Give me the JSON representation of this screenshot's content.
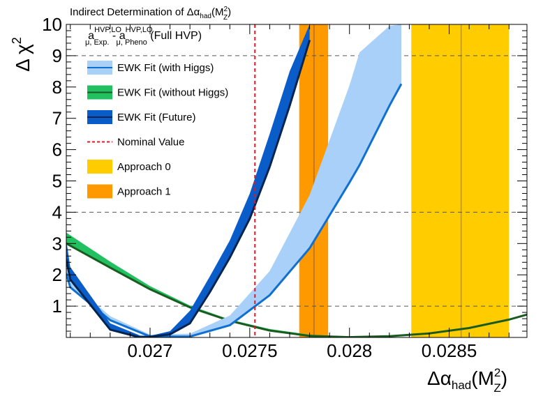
{
  "chart_data": {
    "type": "line",
    "title_prefix": "Indirect Determination of ",
    "title_symbol": "Δα",
    "title_sub": "had",
    "title_arg": "(M",
    "title_arg_sup": "2",
    "title_arg_sub": "Z",
    "title_arg_close": ")",
    "subtitle": {
      "a1": "a",
      "a1_sup": "HVP,LO",
      "a1_sub": "μ, Exp.",
      "minus": " - ",
      "a2": "a",
      "a2_sup": "HVP,LO",
      "a2_sub": "μ, Pheno",
      "suffix": " (Full HVP)"
    },
    "ylabel": "Δ χ",
    "ylabel_sup": "2",
    "xlabel": {
      "symbol": "Δα",
      "sub": "had",
      "arg": "(M",
      "arg_sup": "2",
      "arg_sub": "Z",
      "close": ")"
    },
    "xlim": [
      0.02658,
      0.02889
    ],
    "ylim": [
      0,
      10
    ],
    "xticks": [
      0.027,
      0.0275,
      0.028,
      0.0285
    ],
    "xtick_labels": [
      "0.027",
      "0.0275",
      "0.028",
      "0.0285"
    ],
    "yticks": [
      1,
      2,
      3,
      4,
      5,
      6,
      7,
      8,
      9,
      10
    ],
    "ytick_labels": [
      "1",
      "2",
      "3",
      "4",
      "5",
      "6",
      "7",
      "8",
      "9",
      "10"
    ],
    "reference_lines": [
      1,
      4,
      9
    ],
    "bands": [
      {
        "name": "Approach 0",
        "x_min": 0.02831,
        "x_max": 0.0288,
        "center": 0.02856,
        "color": "#ffcc00",
        "line_color": "#c8a030"
      },
      {
        "name": "Approach 1",
        "x_min": 0.027748,
        "x_max": 0.027893,
        "center": 0.027822,
        "color": "#ff9900",
        "line_color": "#c07818"
      }
    ],
    "nominal_value": {
      "name": "Nominal Value",
      "x": 0.027526,
      "color": "#e8141e"
    },
    "series": [
      {
        "name": "EWK Fit (without Higgs)",
        "fill_color": "#22c060",
        "line_color": "#1a5c20",
        "x": [
          0.02658,
          0.0268,
          0.027,
          0.0272,
          0.0274,
          0.0276,
          0.0278,
          0.028,
          0.0282,
          0.0284,
          0.0286,
          0.0288,
          0.02889
        ],
        "y_upper": [
          3.35,
          2.42,
          1.64,
          1.02,
          0.57,
          0.27,
          0.09,
          0.03,
          0.04,
          0.13,
          0.3,
          0.57,
          0.73
        ],
        "y_lower": [
          3.0,
          2.23,
          1.54,
          0.96,
          0.53,
          0.22,
          0.05,
          0.01,
          0.04,
          0.13,
          0.3,
          0.57,
          0.73
        ],
        "y_central": [
          3.0,
          2.23,
          1.54,
          0.96,
          0.53,
          0.22,
          0.05,
          0.01,
          0.04,
          0.13,
          0.3,
          0.57,
          0.73
        ]
      },
      {
        "name": "EWK Fit (with Higgs)",
        "fill_color": "#a8d0f8",
        "line_color": "#1070d0",
        "x": [
          0.02658,
          0.0266,
          0.0268,
          0.027,
          0.0272,
          0.0274,
          0.0276,
          0.0278,
          0.028,
          0.02805,
          0.0282,
          0.02826
        ],
        "y_upper": [
          2.25,
          1.78,
          0.68,
          0.09,
          0.12,
          0.7,
          2.12,
          4.55,
          8.05,
          9.1,
          9.95,
          10.0
        ],
        "y_lower": [
          2.05,
          1.6,
          0.55,
          0.03,
          0.03,
          0.39,
          1.35,
          2.85,
          4.95,
          5.5,
          7.4,
          8.1
        ]
      },
      {
        "name": "EWK Fit (Future)",
        "fill_color": "#0a5cc8",
        "line_color": "#00244e",
        "x": [
          0.02658,
          0.0266,
          0.0268,
          0.02695,
          0.027,
          0.0271,
          0.0272,
          0.0273,
          0.0274,
          0.0275,
          0.0276,
          0.0277,
          0.0278
        ],
        "y_upper": [
          3.1,
          2.25,
          0.45,
          0.06,
          0.05,
          0.2,
          0.85,
          1.95,
          3.1,
          4.6,
          6.5,
          8.5,
          10.0
        ],
        "y_lower": [
          2.5,
          1.85,
          0.25,
          0.0,
          0.02,
          0.1,
          0.45,
          1.45,
          2.55,
          3.8,
          5.45,
          7.4,
          9.5
        ]
      }
    ],
    "legend": [
      {
        "label": "EWK Fit (with Higgs)",
        "kind": "fill_line",
        "fill": "#a8d0f8",
        "line": "#1070d0"
      },
      {
        "label": "EWK Fit (without Higgs)",
        "kind": "fill_line",
        "fill": "#22c060",
        "line": "#1a5c20"
      },
      {
        "label": "EWK Fit (Future)",
        "kind": "fill_line",
        "fill": "#0a5cc8",
        "line": "#00244e"
      },
      {
        "label": "Nominal Value",
        "kind": "dashed",
        "line": "#e8141e"
      },
      {
        "label": "Approach 0",
        "kind": "fill",
        "fill": "#ffcc00"
      },
      {
        "label": "Approach 1",
        "kind": "fill",
        "fill": "#ff9900"
      }
    ]
  }
}
